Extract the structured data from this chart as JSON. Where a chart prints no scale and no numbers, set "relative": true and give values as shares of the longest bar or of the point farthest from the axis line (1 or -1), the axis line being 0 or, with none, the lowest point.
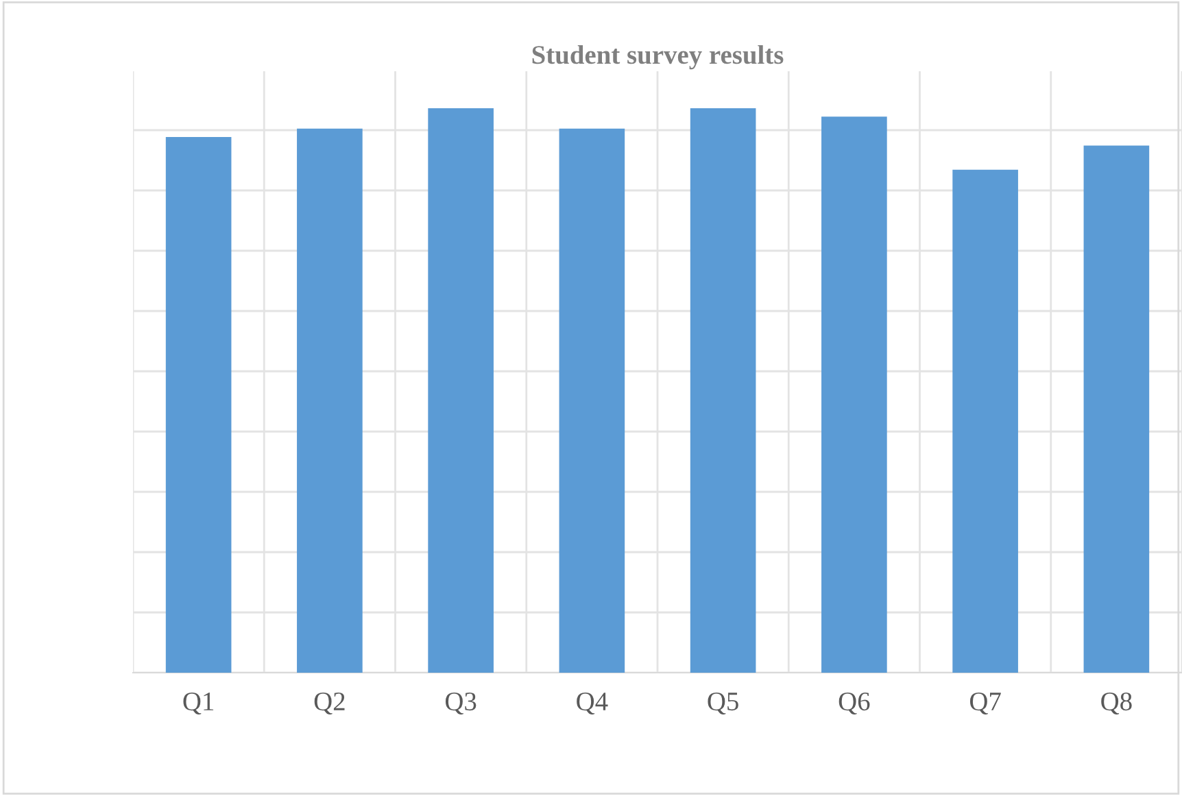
{
  "chart_data": {
    "type": "bar",
    "title": "Student survey results",
    "relative": true,
    "categories": [
      "Q1",
      "Q2",
      "Q3",
      "Q4",
      "Q5",
      "Q6",
      "Q7",
      "Q8"
    ],
    "values": [
      0.949,
      0.964,
      1,
      0.964,
      1,
      0.985,
      0.891,
      0.934
    ],
    "color": "#5b9bd5",
    "grid": true
  }
}
